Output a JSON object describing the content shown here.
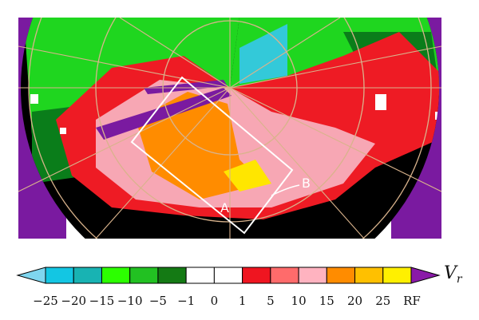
{
  "image": {
    "markers": [
      {
        "id": "A",
        "label": "A"
      },
      {
        "id": "B",
        "label": "B"
      }
    ],
    "scan_colors": {
      "background": "#000000",
      "ring": "#d9b38c",
      "box": "#ffffff",
      "rf_purple": "#7a1aa0",
      "green": "#1fd61f",
      "dark_green": "#0a7d1a",
      "red": "#ee1b24",
      "pink": "#f7a7b4",
      "orange": "#ff8c00",
      "yellow": "#ffe600",
      "cyan": "#33c9d9"
    }
  },
  "colorbar": {
    "title": "V",
    "title_subscript": "r",
    "bins": [
      {
        "color": "#7fd6ef"
      },
      {
        "color": "#13c6e3"
      },
      {
        "color": "#18b3b3"
      },
      {
        "color": "#2cff00"
      },
      {
        "color": "#22c122"
      },
      {
        "color": "#147a14"
      },
      {
        "color": "#ffffff"
      },
      {
        "color": "#ffffff"
      },
      {
        "color": "#ef1520"
      },
      {
        "color": "#ff6b6b"
      },
      {
        "color": "#ffb3c0"
      },
      {
        "color": "#ff8c00"
      },
      {
        "color": "#ffc000"
      },
      {
        "color": "#fff000"
      },
      {
        "color": "#8a1aa8"
      }
    ],
    "tick_labels": [
      "−25",
      "−20",
      "−15",
      "−10",
      "−5",
      "−1",
      "0",
      "1",
      "5",
      "10",
      "15",
      "20",
      "25",
      "RF"
    ]
  }
}
